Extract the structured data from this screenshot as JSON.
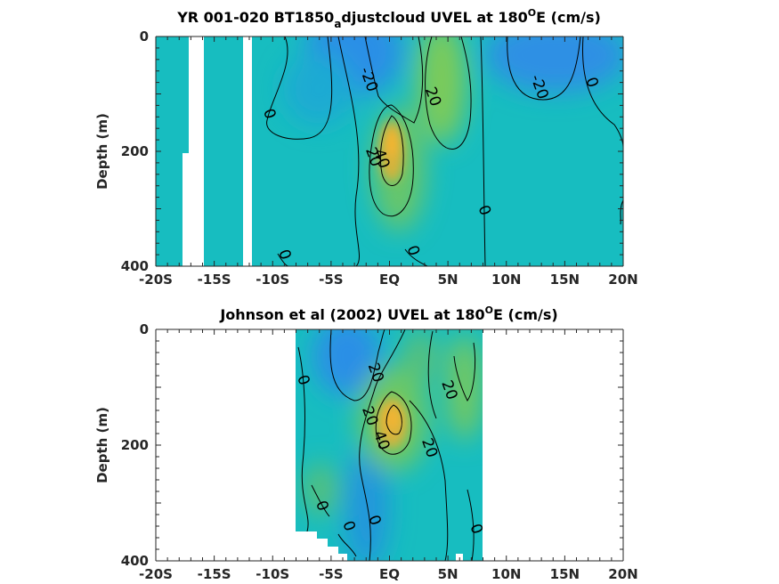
{
  "chart_data": [
    {
      "type": "contour",
      "title_main": "YR 001-020 BT1850",
      "title_sub": "a",
      "title_rest": "djustcloud UVEL at 180",
      "title_sup": "O",
      "title_end": "E (cm/s)",
      "ylabel": "Depth (m)",
      "xlim": [
        -20,
        20
      ],
      "ylim": [
        0,
        400
      ],
      "y_reversed": true,
      "x_tick_values": [
        -20,
        -15,
        -10,
        -5,
        0,
        5,
        10,
        15,
        20
      ],
      "x_tick_labels": [
        "-20S",
        "-15S",
        "-10S",
        "-5S",
        "EQ",
        "5N",
        "10N",
        "15N",
        "20N"
      ],
      "y_tick_values": [
        0,
        200,
        400
      ],
      "y_tick_labels": [
        "0",
        "200",
        "400"
      ],
      "contour_levels": [
        -20,
        0,
        20,
        40
      ],
      "contour_labels": [
        {
          "text": "-20",
          "x": -1.8,
          "y": 75
        },
        {
          "text": "0",
          "x": -10.3,
          "y": 135
        },
        {
          "text": "20",
          "x": 3.7,
          "y": 105
        },
        {
          "text": "-20",
          "x": 12.8,
          "y": 88
        },
        {
          "text": "0",
          "x": 17.3,
          "y": 80
        },
        {
          "text": "20",
          "x": -1.4,
          "y": 210
        },
        {
          "text": "40",
          "x": -0.7,
          "y": 213
        },
        {
          "text": "0",
          "x": 8.1,
          "y": 303
        },
        {
          "text": "0",
          "x": -9.0,
          "y": 380
        },
        {
          "text": "0",
          "x": 2.0,
          "y": 373
        }
      ],
      "features": [
        {
          "kind": "core",
          "x": 0.3,
          "y": 175,
          "value": 45
        },
        {
          "kind": "high",
          "x": 4.7,
          "y": 80,
          "value": 25
        },
        {
          "kind": "low",
          "x": -1.5,
          "y": 30,
          "value": -22
        },
        {
          "kind": "low",
          "x": 11,
          "y": 40,
          "value": -22
        }
      ]
    },
    {
      "type": "contour",
      "title_main": "Johnson et al (2002) UVEL at 180",
      "title_sup": "O",
      "title_end": "E (cm/s)",
      "ylabel": "Depth (m)",
      "xlim": [
        -20,
        20
      ],
      "ylim": [
        0,
        400
      ],
      "y_reversed": true,
      "data_x_range": [
        -8,
        8
      ],
      "x_tick_values": [
        -20,
        -15,
        -10,
        -5,
        0,
        5,
        10,
        15,
        20
      ],
      "x_tick_labels": [
        "-20S",
        "-15S",
        "-10S",
        "-5S",
        "EQ",
        "5N",
        "10N",
        "15N",
        "20N"
      ],
      "y_tick_values": [
        0,
        200,
        400
      ],
      "y_tick_labels": [
        "0",
        "200",
        "400"
      ],
      "contour_levels": [
        -20,
        0,
        20,
        40
      ],
      "contour_labels": [
        {
          "text": "0",
          "x": -7.4,
          "y": 88
        },
        {
          "text": "20",
          "x": -1.2,
          "y": 75
        },
        {
          "text": "20",
          "x": 5.1,
          "y": 105
        },
        {
          "text": "20",
          "x": -1.7,
          "y": 150
        },
        {
          "text": "40",
          "x": -0.7,
          "y": 192
        },
        {
          "text": "20",
          "x": 3.4,
          "y": 205
        },
        {
          "text": "0",
          "x": -5.8,
          "y": 305
        },
        {
          "text": "0",
          "x": -3.5,
          "y": 340
        },
        {
          "text": "0",
          "x": -1.3,
          "y": 330
        },
        {
          "text": "0",
          "x": 7.4,
          "y": 345
        }
      ],
      "features": [
        {
          "kind": "core",
          "x": 0.3,
          "y": 170,
          "value": 45
        },
        {
          "kind": "high",
          "x": 6.2,
          "y": 100,
          "value": 22
        },
        {
          "kind": "low",
          "x": -3.5,
          "y": 40,
          "value": -22
        }
      ]
    }
  ]
}
